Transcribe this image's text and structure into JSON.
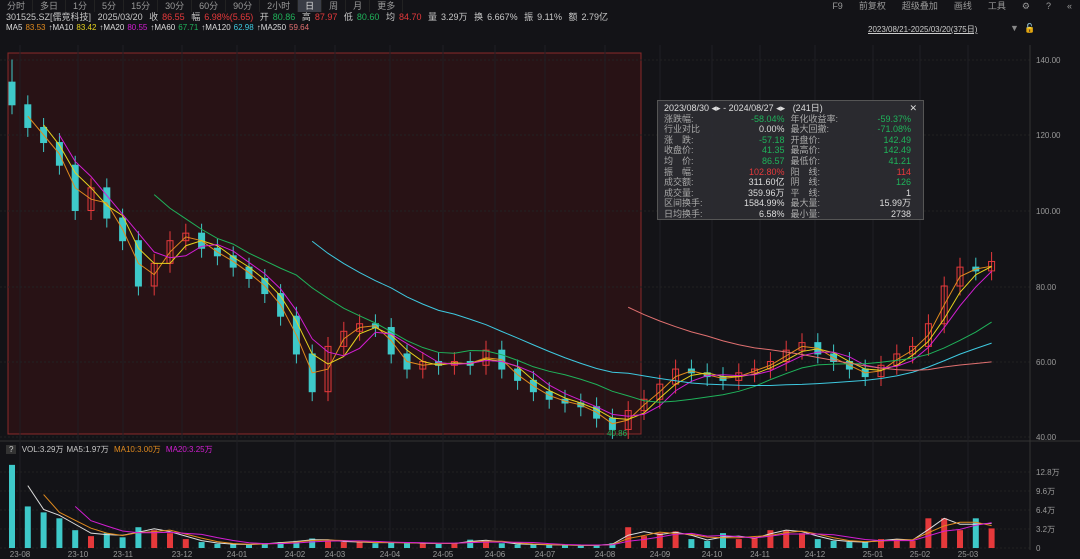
{
  "toolbar": {
    "periods": [
      "分时",
      "多日",
      "1分",
      "5分",
      "15分",
      "30分",
      "60分",
      "90分",
      "2小时",
      "日",
      "周",
      "月",
      "更多"
    ],
    "active": "日",
    "right": [
      "F9",
      "前复权",
      "超级叠加",
      "画线",
      "工具"
    ]
  },
  "quote": {
    "code": "301525.SZ[儒竞科技]",
    "date": "2025/03/20",
    "close_label": "收",
    "close": "86.55",
    "chg_label": "幅",
    "chg": "6.98%(5.65)",
    "open_label": "开",
    "open": "80.86",
    "high_label": "高",
    "high": "87.97",
    "low_label": "低",
    "low": "80.60",
    "avg_label": "均",
    "avg": "84.70",
    "vol_label": "量",
    "vol": "3.29万",
    "turn_label": "换",
    "turn": "6.667%",
    "amp_label": "振",
    "amp": "9.11%",
    "amt_label": "额",
    "amt": "2.79亿"
  },
  "ma": [
    {
      "label": "MA5",
      "value": "83.53",
      "color": "#e08a1e"
    },
    {
      "label": "↑MA10",
      "value": "83.42",
      "color": "#e6d21e"
    },
    {
      "label": "↑MA20",
      "value": "80.55",
      "color": "#d21ed2"
    },
    {
      "label": "↑MA60",
      "value": "67.71",
      "color": "#1fb25a"
    },
    {
      "label": "↑MA120",
      "value": "62.98",
      "color": "#3ec9e0"
    },
    {
      "label": "↑MA250",
      "value": "59.64",
      "color": "#e07070"
    }
  ],
  "range_label": "2023/08/21-2025/03/20(375日)",
  "tooltip": {
    "start": "2023/08/30",
    "end": "2024/08/27",
    "days": "(241日)",
    "rows": [
      [
        "涨跌幅:",
        "-58.04%",
        "g",
        "年化收益率:",
        "-59.37%",
        "g"
      ],
      [
        "行业对比",
        "0.00%",
        "w",
        "最大回撤:",
        "-71.08%",
        "g"
      ],
      [
        "涨　跌:",
        "-57.18",
        "g",
        "开盘价:",
        "142.49",
        "g"
      ],
      [
        "收盘价:",
        "41.35",
        "g",
        "最高价:",
        "142.49",
        "g"
      ],
      [
        "均　价:",
        "86.57",
        "g",
        "最低价:",
        "41.21",
        "g"
      ],
      [
        "振　幅:",
        "102.80%",
        "r",
        "阳　线:",
        "114",
        "r"
      ],
      [
        "成交额:",
        "311.60亿",
        "w",
        "阴　线:",
        "126",
        "g"
      ],
      [
        "成交量:",
        "359.96万",
        "w",
        "平　线:",
        "1",
        "w"
      ],
      [
        "区间换手:",
        "1584.99%",
        "w",
        "最大量:",
        "15.99万",
        "w"
      ],
      [
        "日均换手:",
        "6.58%",
        "w",
        "最小量:",
        "2738",
        "w"
      ]
    ]
  },
  "volume_header": {
    "vol": "VOL:3.29万",
    "ma5": "MA5:1.97万",
    "ma10": "MA10:3.00万",
    "ma20": "MA20:3.25万"
  },
  "colors": {
    "up": "#e5393b",
    "down": "#3ec9c9",
    "bg": "#131317"
  },
  "chart_data": {
    "type": "candlestick",
    "price_ticks": [
      "140.00",
      "120.00",
      "100.00",
      "80.00",
      "60.00",
      "40.00"
    ],
    "volume_ticks": [
      "12.8万",
      "9.6万",
      "6.4万",
      "3.2万",
      "0"
    ],
    "date_ticks": [
      "23-08",
      "23-10",
      "23-11",
      "23-12",
      "24-01",
      "24-02",
      "24-03",
      "24-04",
      "24-05",
      "24-06",
      "24-07",
      "24-08",
      "24-09",
      "24-10",
      "24-11",
      "24-12",
      "25-01",
      "25-02",
      "25-03"
    ],
    "low_marker": "40.86",
    "closes": [
      128,
      122,
      118,
      112,
      100,
      106,
      98,
      92,
      80,
      86,
      92,
      94,
      90,
      88,
      85,
      82,
      78,
      72,
      62,
      52,
      64,
      68,
      70,
      69,
      62,
      58,
      60,
      59,
      60,
      59,
      63,
      58,
      55,
      52,
      50,
      49,
      48,
      45,
      42,
      47,
      50,
      54,
      58,
      57,
      56,
      55,
      57,
      58,
      60,
      63,
      65,
      62,
      60,
      58,
      56,
      59,
      62,
      64,
      70,
      80,
      85,
      84,
      86.5
    ],
    "volumes": [
      14,
      7,
      6,
      5,
      3,
      2,
      2.5,
      1.8,
      3.5,
      3,
      2.5,
      1.5,
      1,
      0.7,
      0.6,
      0.6,
      0.8,
      1,
      1.2,
      1.6,
      1.2,
      1,
      1,
      0.8,
      1,
      0.8,
      0.8,
      0.7,
      0.8,
      1.4,
      1.2,
      0.8,
      0.6,
      0.6,
      0.5,
      0.5,
      0.4,
      0.5,
      0.8,
      3.5,
      2,
      2.5,
      2.8,
      1.5,
      1.2,
      2.5,
      1.5,
      1.8,
      3,
      3,
      2.5,
      1.5,
      1.2,
      1,
      1,
      1.5,
      1.5,
      1.2,
      5,
      5,
      3,
      5,
      3.3
    ]
  }
}
